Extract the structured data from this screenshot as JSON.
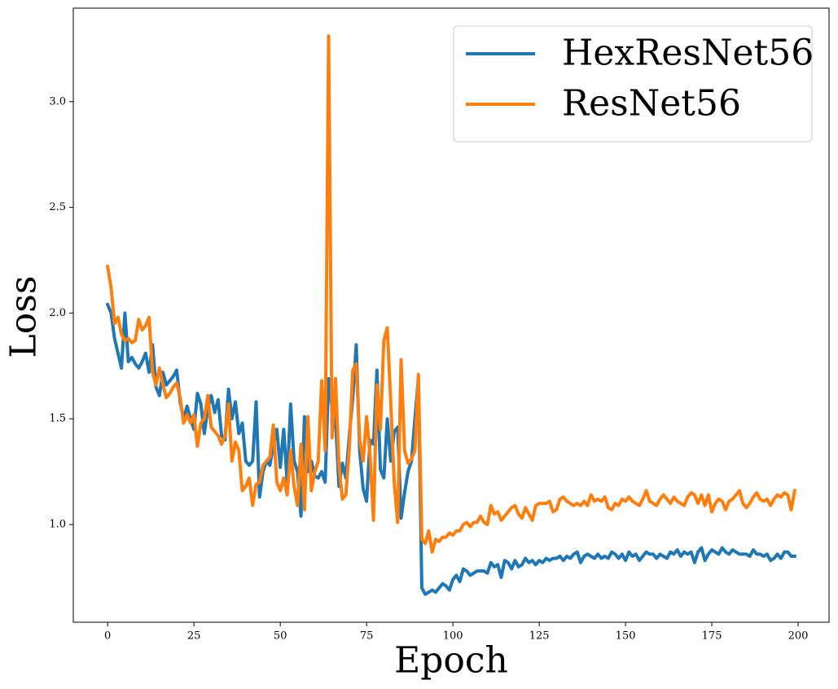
{
  "chart_data": {
    "type": "line",
    "xlabel": "Epoch",
    "ylabel": "Loss",
    "x": [
      0,
      1,
      2,
      3,
      4,
      5,
      6,
      7,
      8,
      9,
      10,
      11,
      12,
      13,
      14,
      15,
      16,
      17,
      18,
      19,
      20,
      21,
      22,
      23,
      24,
      25,
      26,
      27,
      28,
      29,
      30,
      31,
      32,
      33,
      34,
      35,
      36,
      37,
      38,
      39,
      40,
      41,
      42,
      43,
      44,
      45,
      46,
      47,
      48,
      49,
      50,
      51,
      52,
      53,
      54,
      55,
      56,
      57,
      58,
      59,
      60,
      61,
      62,
      63,
      64,
      65,
      66,
      67,
      68,
      69,
      70,
      71,
      72,
      73,
      74,
      75,
      76,
      77,
      78,
      79,
      80,
      81,
      82,
      83,
      84,
      85,
      86,
      87,
      88,
      89,
      90,
      91,
      92,
      93,
      94,
      95,
      96,
      97,
      98,
      99,
      100,
      101,
      102,
      103,
      104,
      105,
      106,
      107,
      108,
      109,
      110,
      111,
      112,
      113,
      114,
      115,
      116,
      117,
      118,
      119,
      120,
      121,
      122,
      123,
      124,
      125,
      126,
      127,
      128,
      129,
      130,
      131,
      132,
      133,
      134,
      135,
      136,
      137,
      138,
      139,
      140,
      141,
      142,
      143,
      144,
      145,
      146,
      147,
      148,
      149,
      150,
      151,
      152,
      153,
      154,
      155,
      156,
      157,
      158,
      159,
      160,
      161,
      162,
      163,
      164,
      165,
      166,
      167,
      168,
      169,
      170,
      171,
      172,
      173,
      174,
      175,
      176,
      177,
      178,
      179,
      180,
      181,
      182,
      183,
      184,
      185,
      186,
      187,
      188,
      189,
      190,
      191,
      192,
      193,
      194,
      195,
      196,
      197,
      198,
      199
    ],
    "series": [
      {
        "name": "HexResNet56",
        "color": "#1f77b4",
        "values": [
          2.04,
          2.0,
          1.88,
          1.81,
          1.74,
          2.0,
          1.77,
          1.79,
          1.76,
          1.74,
          1.77,
          1.81,
          1.72,
          1.85,
          1.65,
          1.61,
          1.72,
          1.66,
          1.68,
          1.7,
          1.73,
          1.58,
          1.5,
          1.56,
          1.5,
          1.45,
          1.62,
          1.57,
          1.43,
          1.55,
          1.61,
          1.53,
          1.59,
          1.42,
          1.4,
          1.64,
          1.5,
          1.58,
          1.43,
          1.48,
          1.3,
          1.28,
          1.3,
          1.58,
          1.13,
          1.25,
          1.3,
          1.28,
          1.38,
          1.45,
          1.27,
          1.45,
          1.2,
          1.57,
          1.3,
          1.25,
          1.04,
          1.51,
          1.25,
          1.3,
          1.23,
          1.22,
          1.25,
          1.2,
          1.69,
          1.55,
          1.5,
          1.18,
          1.29,
          1.22,
          1.42,
          1.6,
          1.85,
          1.35,
          1.17,
          1.11,
          1.4,
          1.38,
          1.73,
          1.26,
          1.22,
          1.5,
          1.3,
          1.44,
          1.46,
          1.03,
          1.15,
          1.25,
          1.3,
          1.5,
          1.69,
          0.7,
          0.67,
          0.68,
          0.69,
          0.68,
          0.7,
          0.72,
          0.71,
          0.69,
          0.74,
          0.76,
          0.73,
          0.79,
          0.78,
          0.76,
          0.77,
          0.78,
          0.78,
          0.78,
          0.77,
          0.82,
          0.8,
          0.81,
          0.75,
          0.83,
          0.82,
          0.79,
          0.83,
          0.8,
          0.81,
          0.84,
          0.82,
          0.83,
          0.81,
          0.83,
          0.82,
          0.84,
          0.83,
          0.84,
          0.84,
          0.85,
          0.83,
          0.85,
          0.84,
          0.86,
          0.87,
          0.82,
          0.85,
          0.86,
          0.85,
          0.84,
          0.86,
          0.84,
          0.85,
          0.84,
          0.87,
          0.86,
          0.84,
          0.86,
          0.83,
          0.87,
          0.85,
          0.86,
          0.83,
          0.85,
          0.87,
          0.86,
          0.86,
          0.84,
          0.86,
          0.85,
          0.84,
          0.87,
          0.86,
          0.88,
          0.85,
          0.87,
          0.86,
          0.87,
          0.82,
          0.87,
          0.89,
          0.83,
          0.86,
          0.88,
          0.87,
          0.86,
          0.89,
          0.87,
          0.86,
          0.88,
          0.87,
          0.86,
          0.86,
          0.86,
          0.85,
          0.88,
          0.86,
          0.86,
          0.85,
          0.86,
          0.83,
          0.84,
          0.86,
          0.84,
          0.87,
          0.87,
          0.85,
          0.85
        ]
      },
      {
        "name": "ResNet56",
        "color": "#ff7f0e",
        "values": [
          2.22,
          2.12,
          1.95,
          1.98,
          1.9,
          1.87,
          1.88,
          1.86,
          1.87,
          1.97,
          1.92,
          1.94,
          1.98,
          1.72,
          1.66,
          1.74,
          1.66,
          1.6,
          1.62,
          1.65,
          1.67,
          1.6,
          1.48,
          1.52,
          1.48,
          1.52,
          1.37,
          1.48,
          1.5,
          1.61,
          1.46,
          1.44,
          1.42,
          1.38,
          1.42,
          1.57,
          1.3,
          1.39,
          1.35,
          1.16,
          1.18,
          1.22,
          1.09,
          1.19,
          1.2,
          1.28,
          1.3,
          1.32,
          1.47,
          1.2,
          1.16,
          1.22,
          1.14,
          1.35,
          1.18,
          1.09,
          1.38,
          1.07,
          1.51,
          1.16,
          1.25,
          1.3,
          1.68,
          1.35,
          3.31,
          1.41,
          1.69,
          1.28,
          1.12,
          1.14,
          1.36,
          1.73,
          1.76,
          1.4,
          1.3,
          1.51,
          1.33,
          1.02,
          1.66,
          1.45,
          1.87,
          1.93,
          1.58,
          1.2,
          1.01,
          1.78,
          1.35,
          1.29,
          1.31,
          1.35,
          1.71,
          0.93,
          0.91,
          0.97,
          0.87,
          0.93,
          0.92,
          0.94,
          0.94,
          0.96,
          0.95,
          0.97,
          0.97,
          1.0,
          1.01,
          0.99,
          1.01,
          1.01,
          1.04,
          1.01,
          1.0,
          1.09,
          1.05,
          1.06,
          1.02,
          1.04,
          1.06,
          1.08,
          1.09,
          1.05,
          1.03,
          1.08,
          1.05,
          1.02,
          1.09,
          1.1,
          1.1,
          1.1,
          1.11,
          1.06,
          1.07,
          1.12,
          1.13,
          1.11,
          1.1,
          1.09,
          1.1,
          1.09,
          1.11,
          1.09,
          1.14,
          1.11,
          1.12,
          1.11,
          1.13,
          1.08,
          1.07,
          1.1,
          1.09,
          1.12,
          1.11,
          1.13,
          1.11,
          1.1,
          1.09,
          1.12,
          1.16,
          1.11,
          1.1,
          1.09,
          1.12,
          1.14,
          1.12,
          1.1,
          1.13,
          1.11,
          1.1,
          1.09,
          1.13,
          1.15,
          1.14,
          1.1,
          1.14,
          1.09,
          1.14,
          1.06,
          1.1,
          1.12,
          1.11,
          1.07,
          1.11,
          1.12,
          1.14,
          1.16,
          1.1,
          1.08,
          1.1,
          1.13,
          1.15,
          1.12,
          1.11,
          1.12,
          1.09,
          1.12,
          1.14,
          1.13,
          1.15,
          1.14,
          1.07,
          1.16
        ]
      }
    ],
    "xlim": [
      -9.95,
      208.95
    ],
    "xticks": [
      0,
      25,
      50,
      75,
      100,
      125,
      150,
      175,
      200
    ],
    "ylim": [
      0.538,
      3.442
    ],
    "yticks": [
      {
        "value": 1,
        "label": "1.0"
      },
      1.5,
      {
        "value": 2,
        "label": "2.0"
      },
      2.5,
      {
        "value": 3,
        "label": "3.0"
      }
    ],
    "grid": false,
    "legend": "upper right"
  }
}
